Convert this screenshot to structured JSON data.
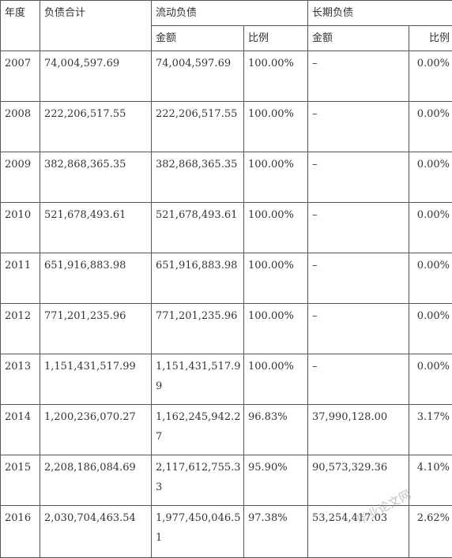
{
  "headers": {
    "year": "年度",
    "total": "负债合计",
    "current": "流动负债",
    "longterm": "长期负债",
    "amount": "金额",
    "ratio": "比例"
  },
  "rows": [
    {
      "year": "2007",
      "total": "74,004,597.69",
      "cur_amount": "74,004,597.69",
      "cur_ratio": "100.00%",
      "lt_amount": "–",
      "lt_ratio": "0.00%"
    },
    {
      "year": "2008",
      "total": "222,206,517.55",
      "cur_amount": "222,206,517.55",
      "cur_ratio": "100.00%",
      "lt_amount": "–",
      "lt_ratio": "0.00%"
    },
    {
      "year": "2009",
      "total": "382,868,365.35",
      "cur_amount": "382,868,365.35",
      "cur_ratio": "100.00%",
      "lt_amount": "–",
      "lt_ratio": "0.00%"
    },
    {
      "year": "2010",
      "total": "521,678,493.61",
      "cur_amount": "521,678,493.61",
      "cur_ratio": "100.00%",
      "lt_amount": "–",
      "lt_ratio": "0.00%"
    },
    {
      "year": "2011",
      "total": "651,916,883.98",
      "cur_amount": "651,916,883.98",
      "cur_ratio": "100.00%",
      "lt_amount": "–",
      "lt_ratio": "0.00%"
    },
    {
      "year": "2012",
      "total": "771,201,235.96",
      "cur_amount": "771,201,235.96",
      "cur_ratio": "100.00%",
      "lt_amount": "–",
      "lt_ratio": "0.00%"
    },
    {
      "year": "2013",
      "total": "1,151,431,517.99",
      "cur_amount": "1,151,431,517.99",
      "cur_ratio": "100.00%",
      "lt_amount": "–",
      "lt_ratio": "0.00%"
    },
    {
      "year": "2014",
      "total": "1,200,236,070.27",
      "cur_amount": "1,162,245,942.27",
      "cur_ratio": "96.83%",
      "lt_amount": "37,990,128.00",
      "lt_ratio": "3.17%"
    },
    {
      "year": "2015",
      "total": "2,208,186,084.69",
      "cur_amount": "2,117,612,755.33",
      "cur_ratio": "95.90%",
      "lt_amount": "90,573,329.36",
      "lt_ratio": "4.10%"
    },
    {
      "year": "2016",
      "total": "2,030,704,463.54",
      "cur_amount": "1,977,450,046.51",
      "cur_ratio": "97.38%",
      "lt_amount": "53,254,417.03",
      "lt_ratio": "2.62%"
    }
  ],
  "watermark": "毕业论文网"
}
